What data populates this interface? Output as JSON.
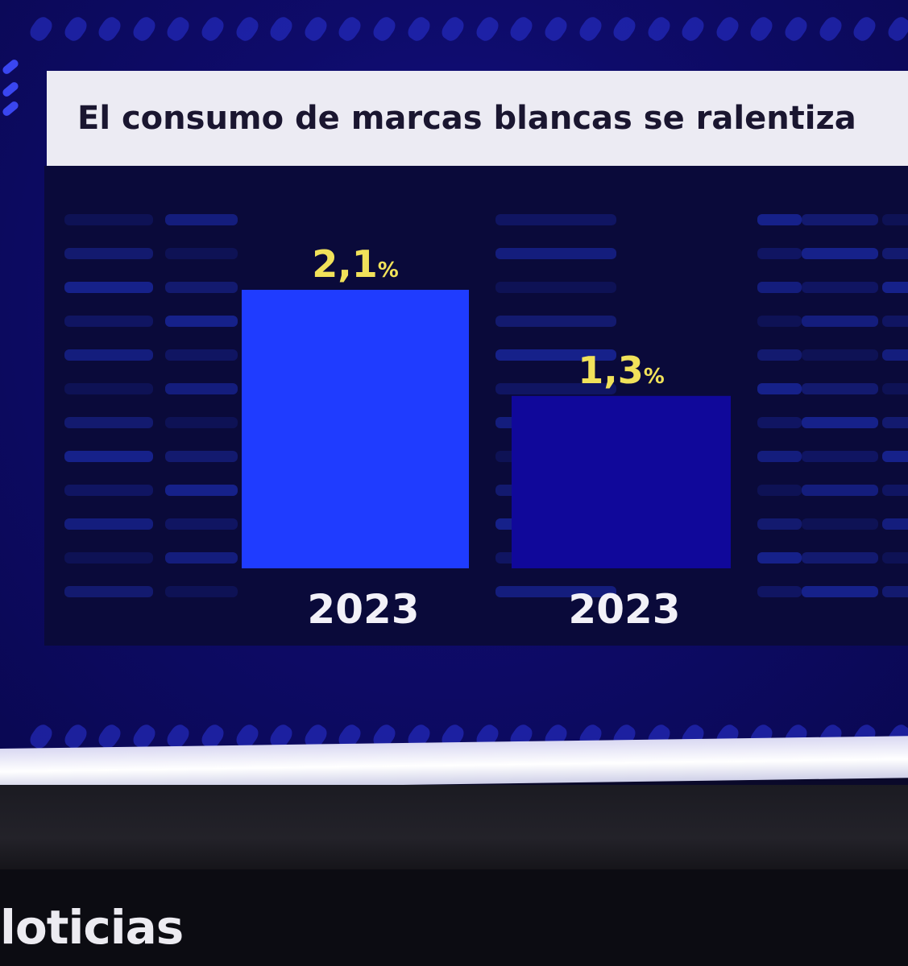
{
  "colors": {
    "bar_bright": "#1f3cff",
    "bar_dark": "#10089a",
    "value_text": "#f1e25a",
    "year_text": "#f2f1f8",
    "title_bg": "#ecebf3",
    "title_text": "#1a1630"
  },
  "chart_data": {
    "type": "bar",
    "title": "El consumo de marcas blancas se ralentiza",
    "categories": [
      "2023",
      "2023"
    ],
    "values": [
      2.1,
      1.3
    ],
    "value_labels": [
      "2,1",
      "1,3"
    ],
    "value_unit": "%",
    "ylim": [
      0,
      2.1
    ],
    "grid": false,
    "legend": "none"
  },
  "footer": {
    "channel_text": "loticias"
  }
}
